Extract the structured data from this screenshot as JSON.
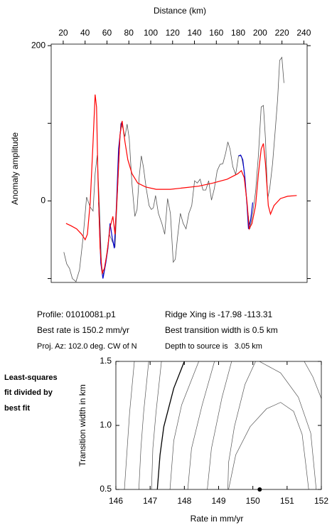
{
  "chart_data": [
    {
      "type": "line",
      "x_label": "Distance (km)",
      "y_label": "Anomaly amplitude",
      "xlim": [
        9,
        243
      ],
      "ylim": [
        -105,
        202
      ],
      "xticks": [
        20,
        40,
        60,
        80,
        100,
        120,
        140,
        160,
        180,
        200,
        220,
        240
      ],
      "yticks": [
        0,
        200
      ],
      "yminorticks": [
        -100,
        100
      ],
      "series": [
        {
          "color": "#555555",
          "x": [
            20.6,
            23.2,
            25.8,
            28.4,
            31.7,
            34.9,
            38.2,
            41.4,
            44.7,
            47.3,
            49.2,
            51.1,
            53.1,
            55.0,
            57.0,
            59.6,
            62.2,
            64.8,
            67.4,
            70.0,
            72.6,
            74.5,
            76.5,
            78.4,
            80.4,
            82.9,
            85.5,
            87.5,
            89.4,
            91.4,
            93.3,
            95.9,
            98.5,
            100.5,
            102.4,
            104.4,
            107.0,
            110.2,
            112.8,
            115.4,
            118.0,
            120.6,
            122.5,
            124.5,
            127.1,
            129.7,
            132.3,
            134.9,
            137.5,
            140.1,
            142.6,
            145.2,
            147.8,
            150.4,
            153.0,
            155.6,
            158.2,
            160.8,
            163.4,
            166.0,
            168.6,
            170.5,
            172.5,
            175.1,
            177.7,
            180.3,
            182.9,
            185.5,
            188.1,
            190.7,
            193.3,
            195.9,
            198.5,
            201.0,
            203.0,
            204.9,
            206.9,
            208.8,
            211.4,
            214.0,
            216.0,
            217.9,
            219.9,
            221.8
          ],
          "values": [
            -66,
            -81,
            -87,
            -100,
            -104,
            -89,
            -47,
            5,
            -8,
            -13,
            35,
            59,
            -6,
            -84,
            -96,
            -70,
            -43,
            -52,
            -59,
            21,
            99,
            94,
            83,
            99,
            80,
            21,
            -20,
            -11,
            30,
            58,
            44,
            16,
            -6,
            -11,
            -9,
            7,
            -16,
            -29,
            -43,
            3,
            -16,
            -79,
            -75,
            -47,
            -16,
            -29,
            -36,
            -16,
            -6,
            26,
            23,
            28,
            14,
            14,
            26,
            1,
            16,
            39,
            47,
            48,
            62,
            76,
            67,
            44,
            34,
            58,
            58,
            39,
            -6,
            -36,
            -16,
            12,
            59,
            121,
            123,
            80,
            3,
            16,
            48,
            94,
            131,
            181,
            185,
            152
          ]
        },
        {
          "color": "#0000cc",
          "x": [
            52.4,
            54.4,
            56.3,
            58.9,
            60.9,
            62.8,
            64.8,
            66.7,
            68.7,
            70.6,
            73.2,
            74.5,
            null,
            180.3,
            182.2,
            184.2,
            186.1,
            188.1,
            189.4,
            191.3,
            193.3
          ],
          "values": [
            -2,
            -80,
            -100,
            -80,
            -61,
            -29,
            -47,
            -61,
            -6,
            67,
            101,
            96,
            null,
            58,
            59,
            53,
            30,
            -6,
            -36,
            -25,
            -2
          ]
        },
        {
          "color": "#ff0000",
          "x": [
            22.6,
            27.1,
            32.3,
            36.9,
            40.1,
            42.1,
            44.7,
            47.3,
            49.2,
            50.5,
            51.8,
            53.7,
            55.7,
            57.6,
            60.2,
            62.8,
            65.4,
            67.4,
            69.3,
            71.9,
            73.9,
            76.5,
            79.1,
            82.9,
            88.1,
            95.3,
            105.0,
            118.0,
            131.0,
            143.9,
            156.9,
            169.9,
            179.6,
            182.9,
            185.5,
            188.1,
            190.0,
            192.6,
            195.9,
            198.5,
            201.0,
            203.0,
            204.9,
            207.5,
            209.5,
            212.7,
            218.6,
            225.1,
            233.5
          ],
          "values": [
            -29,
            -32,
            -36,
            -43,
            -50,
            -43,
            -2,
            76,
            137,
            121,
            30,
            -61,
            -93,
            -87,
            -66,
            -34,
            -20,
            -43,
            7,
            85,
            103,
            76,
            53,
            35,
            23,
            18,
            15,
            15,
            17,
            19,
            23,
            28,
            35,
            39,
            30,
            -2,
            -36,
            -29,
            -6,
            35,
            67,
            74,
            48,
            -6,
            -17,
            -6,
            3,
            6,
            7
          ]
        }
      ]
    },
    {
      "type": "contour",
      "x_label": "Rate in mm/yr",
      "y_label": "Transition width in km",
      "xlim": [
        146,
        152
      ],
      "ylim": [
        0.5,
        1.5
      ],
      "xticks": [
        146,
        147,
        148,
        149,
        150,
        151,
        152
      ],
      "yticks": [
        {
          "value": 0.5,
          "label": "0.5"
        },
        {
          "value": 1.0,
          "label": "1.0"
        },
        {
          "value": 1.5,
          "label": "1.5"
        }
      ],
      "color": "#555555",
      "thick_color": "#000000",
      "contours": [
        {
          "x": [
            146.25,
            146.33,
            146.4,
            146.54
          ],
          "y": [
            0.5,
            0.82,
            1.1,
            1.5
          ]
        },
        {
          "x": [
            146.67,
            146.73,
            146.81,
            146.96
          ],
          "y": [
            0.5,
            0.82,
            1.1,
            1.5
          ]
        },
        {
          "x": [
            147.04,
            147.08,
            147.17,
            147.33
          ],
          "y": [
            0.5,
            0.82,
            1.1,
            1.5
          ]
        },
        {
          "x": [
            147.21,
            147.29,
            147.4,
            147.69,
            148.0
          ],
          "y": [
            0.5,
            0.77,
            0.99,
            1.29,
            1.5
          ],
          "thick": true
        },
        {
          "x": [
            147.58,
            147.69,
            147.92,
            148.42
          ],
          "y": [
            0.5,
            0.88,
            1.16,
            1.5
          ]
        },
        {
          "x": [
            148.1,
            148.21,
            148.52,
            148.88
          ],
          "y": [
            0.5,
            0.82,
            1.16,
            1.5
          ]
        },
        {
          "x": [
            148.67,
            148.79,
            149.1,
            149.38
          ],
          "y": [
            0.5,
            0.82,
            1.22,
            1.5
          ]
        },
        {
          "x": [
            149.27,
            149.29,
            149.46,
            149.77,
            150.08
          ],
          "y": [
            0.5,
            0.71,
            0.99,
            1.32,
            1.5
          ]
        },
        {
          "x": [
            149.29,
            149.5,
            149.92,
            150.4,
            150.81,
            151.19,
            151.44,
            151.54,
            151.63
          ],
          "y": [
            0.5,
            0.77,
            0.99,
            1.13,
            1.18,
            1.11,
            0.93,
            0.71,
            0.5
          ]
        },
        {
          "x": [
            150.19,
            150.81,
            151.33,
            151.69,
            151.85
          ],
          "y": [
            1.5,
            1.41,
            1.22,
            0.94,
            0.5
          ]
        },
        {
          "x": [
            151.5,
            151.75,
            152.0
          ],
          "y": [
            1.5,
            1.38,
            1.21
          ]
        }
      ],
      "best_fit": {
        "x": 150.2,
        "y": 0.5
      }
    }
  ],
  "info": {
    "profile": "Profile: 01010081.p1",
    "rate": "Best rate is 150.2 mm/yr",
    "azimuth": "Proj. Az: 102.0 deg. CW of N",
    "ridge": "Ridge Xing is -17.98 -113.31",
    "width": "Best transition width is 0.5 km",
    "depth": "Depth to source is   3.05 km"
  },
  "note": [
    "Least-squares",
    "fit divided by",
    "best fit"
  ]
}
